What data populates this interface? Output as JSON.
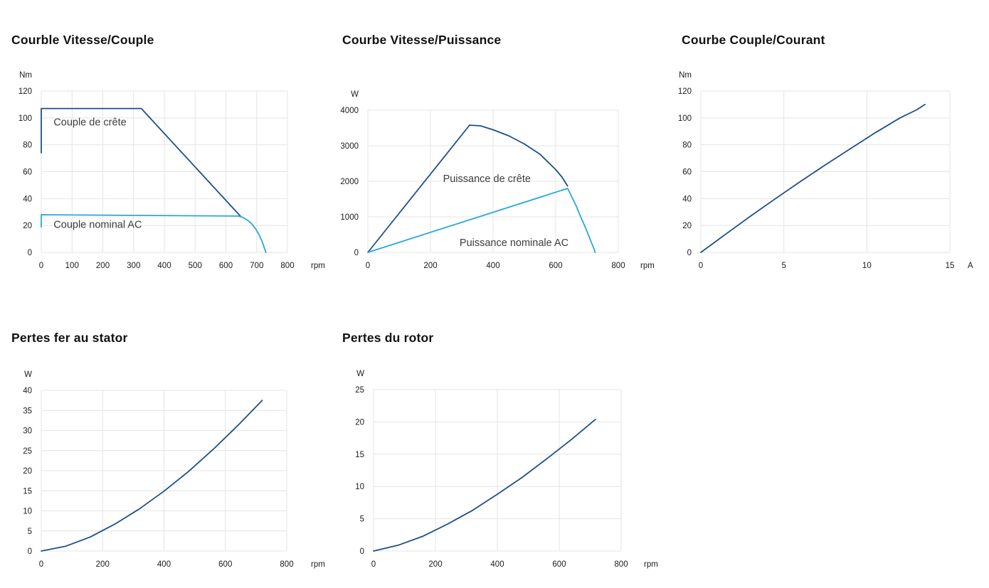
{
  "page": {
    "background": "#ffffff"
  },
  "colors": {
    "dark_blue": "#1e4f8c",
    "light_blue": "#29a7dd",
    "grid": "#e4e4e4",
    "tick_text": "#1a1a1a",
    "annotation_text": "#3d3d3d",
    "title_text": "#111111"
  },
  "chart_data": [
    {
      "type": "line",
      "title": "Courble Vitesse/Couple",
      "x_unit": "rpm",
      "y_unit": "Nm",
      "xlim": [
        0,
        800
      ],
      "ylim": [
        0,
        120
      ],
      "x_ticks": [
        0,
        100,
        200,
        300,
        400,
        500,
        600,
        700,
        800
      ],
      "y_ticks": [
        0,
        20,
        40,
        60,
        80,
        100,
        120
      ],
      "grid": true,
      "legend_position": "inline-annotations",
      "series": [
        {
          "name": "Couple de crête",
          "color": "dark_blue",
          "points": [
            [
              0,
              74
            ],
            [
              0,
              107
            ],
            [
              325,
              107
            ],
            [
              647,
              27
            ]
          ]
        },
        {
          "name": "Couple nominal AC",
          "color": "light_blue",
          "points": [
            [
              0,
              19
            ],
            [
              0,
              28
            ],
            [
              320,
              27.5
            ],
            [
              640,
              27
            ],
            [
              655,
              26
            ],
            [
              670,
              24
            ],
            [
              685,
              21
            ],
            [
              698,
              17
            ],
            [
              708,
              13
            ],
            [
              717,
              8.5
            ],
            [
              724,
              4
            ],
            [
              730,
              0
            ]
          ]
        }
      ],
      "annotations": [
        {
          "text": "Couple de crête",
          "x": 40,
          "y": 97
        },
        {
          "text": "Couple nominal AC",
          "x": 40,
          "y": 21
        }
      ]
    },
    {
      "type": "line",
      "title": "Courbe Vitesse/Puissance",
      "x_unit": "rpm",
      "y_unit": "W",
      "xlim": [
        0,
        800
      ],
      "ylim": [
        0,
        4000
      ],
      "x_ticks": [
        0,
        200,
        400,
        600,
        800
      ],
      "y_ticks": [
        0,
        1000,
        2000,
        3000,
        4000
      ],
      "grid": true,
      "legend_position": "inline-annotations",
      "series": [
        {
          "name": "Puissance de crête",
          "color": "dark_blue",
          "points": [
            [
              0,
              0
            ],
            [
              325,
              3580
            ],
            [
              360,
              3560
            ],
            [
              400,
              3450
            ],
            [
              450,
              3280
            ],
            [
              500,
              3050
            ],
            [
              550,
              2760
            ],
            [
              600,
              2330
            ],
            [
              620,
              2120
            ],
            [
              638,
              1870
            ]
          ]
        },
        {
          "name": "Puissance nominale AC",
          "color": "light_blue",
          "points": [
            [
              0,
              0
            ],
            [
              638,
              1800
            ],
            [
              652,
              1550
            ],
            [
              666,
              1300
            ],
            [
              680,
              1000
            ],
            [
              695,
              700
            ],
            [
              705,
              480
            ],
            [
              716,
              240
            ],
            [
              722,
              110
            ],
            [
              726,
              0
            ]
          ]
        }
      ],
      "annotations": [
        {
          "text": "Puissance de crête",
          "x": 240,
          "y": 2080
        },
        {
          "text": "Puissance nominale AC",
          "x": 293,
          "y": 280
        }
      ]
    },
    {
      "type": "line",
      "title": "Courbe Couple/Courant",
      "x_unit": "A",
      "y_unit": "Nm",
      "xlim": [
        0,
        15
      ],
      "ylim": [
        0,
        120
      ],
      "x_ticks": [
        0,
        5,
        10,
        15
      ],
      "y_ticks": [
        0,
        20,
        40,
        60,
        80,
        100,
        120
      ],
      "grid": true,
      "legend_position": "none",
      "series": [
        {
          "name": "Couple/Courant",
          "color": "dark_blue",
          "points": [
            [
              0,
              0
            ],
            [
              1.5,
              13.6
            ],
            [
              3,
              27
            ],
            [
              4.5,
              40
            ],
            [
              6,
              52.7
            ],
            [
              7.5,
              65.1
            ],
            [
              9,
              77.1
            ],
            [
              10.5,
              88.9
            ],
            [
              12,
              100
            ],
            [
              13,
              106
            ],
            [
              13.5,
              110
            ]
          ]
        }
      ],
      "annotations": []
    },
    {
      "type": "line",
      "title": "Pertes fer au stator",
      "x_unit": "rpm",
      "y_unit": "W",
      "xlim": [
        0,
        800
      ],
      "ylim": [
        0,
        40
      ],
      "x_ticks": [
        0,
        200,
        400,
        600,
        800
      ],
      "y_ticks": [
        0,
        5,
        10,
        15,
        20,
        25,
        30,
        35,
        40
      ],
      "grid": true,
      "legend_position": "none",
      "series": [
        {
          "name": "Pertes fer au stator",
          "color": "dark_blue",
          "points": [
            [
              0,
              0
            ],
            [
              80,
              1.2
            ],
            [
              160,
              3.5
            ],
            [
              240,
              6.7
            ],
            [
              320,
              10.5
            ],
            [
              400,
              14.9
            ],
            [
              480,
              19.8
            ],
            [
              560,
              25.3
            ],
            [
              640,
              31.2
            ],
            [
              720,
              37.5
            ]
          ]
        }
      ],
      "annotations": []
    },
    {
      "type": "line",
      "title": "Pertes du rotor",
      "x_unit": "rpm",
      "y_unit": "W",
      "xlim": [
        0,
        800
      ],
      "ylim": [
        0,
        25
      ],
      "x_ticks": [
        0,
        200,
        400,
        600,
        800
      ],
      "y_ticks": [
        0,
        5,
        10,
        15,
        20,
        25
      ],
      "grid": true,
      "legend_position": "none",
      "series": [
        {
          "name": "Pertes du rotor",
          "color": "dark_blue",
          "points": [
            [
              0,
              0
            ],
            [
              80,
              0.9
            ],
            [
              160,
              2.3
            ],
            [
              240,
              4.2
            ],
            [
              320,
              6.3
            ],
            [
              400,
              8.8
            ],
            [
              480,
              11.4
            ],
            [
              560,
              14.3
            ],
            [
              640,
              17.3
            ],
            [
              717,
              20.4
            ]
          ]
        }
      ],
      "annotations": []
    }
  ]
}
